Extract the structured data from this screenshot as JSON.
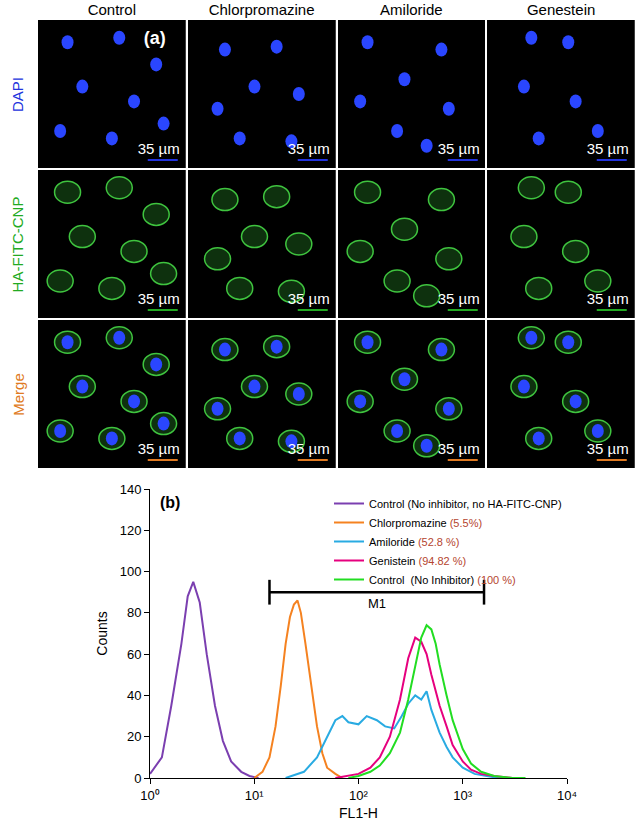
{
  "panel_a": {
    "label": "(a)",
    "columns": [
      "Control",
      "Chlorpromazine",
      "Amiloride",
      "Genestein"
    ],
    "rows": [
      {
        "name": "DAPI",
        "color": "#2233dd"
      },
      {
        "name": "HA-FITC-CNP",
        "color": "#22aa22"
      },
      {
        "name": "Merge",
        "color": "#e07a22"
      }
    ],
    "scale_bar": "35 µm"
  },
  "chart_data": {
    "type": "line",
    "panel_label": "(b)",
    "x_label": "FL1-H",
    "y_label": "Counts",
    "log": "x",
    "grid": false,
    "legend": "top right",
    "xlim": [
      1,
      10000
    ],
    "xticks": [
      {
        "value": 1,
        "label": "10⁰"
      },
      {
        "value": 10,
        "label": "10¹"
      },
      {
        "value": 100,
        "label": "10²"
      },
      {
        "value": 1000,
        "label": "10³"
      },
      {
        "value": 10000,
        "label": "10⁴"
      }
    ],
    "ylim": [
      0,
      140
    ],
    "yticks": [
      0,
      20,
      40,
      60,
      80,
      100,
      120,
      140
    ],
    "gate": {
      "label": "M1",
      "x0": 14,
      "x1": 1600,
      "y": 90
    },
    "series": [
      {
        "name": "Control (No inhibitor, no HA-FITC-CNP)",
        "color": "#7b3fb0",
        "x": [
          1,
          1.3,
          1.6,
          2,
          2.3,
          2.6,
          3,
          3.5,
          4.2,
          5,
          6,
          7.5,
          9,
          11
        ],
        "values": [
          2,
          10,
          35,
          65,
          88,
          95,
          85,
          60,
          35,
          18,
          8,
          3,
          1,
          0
        ]
      },
      {
        "name": "Chlorpromazine",
        "label": "(5.5%)",
        "color": "#f58220",
        "x": [
          10,
          12,
          14,
          16,
          18,
          20,
          22,
          24,
          26,
          28,
          31,
          35,
          40,
          45,
          50,
          60,
          70
        ],
        "values": [
          0,
          3,
          10,
          25,
          45,
          65,
          78,
          84,
          86,
          80,
          65,
          45,
          25,
          12,
          5,
          2,
          0
        ]
      },
      {
        "name": "Amiloride",
        "label": "(52.8 %)",
        "color": "#29abe2",
        "x": [
          20,
          30,
          40,
          50,
          60,
          70,
          80,
          100,
          120,
          150,
          180,
          220,
          260,
          300,
          350,
          400,
          450,
          500,
          600,
          700,
          800,
          1000,
          1300,
          1700,
          2200,
          3000
        ],
        "values": [
          0,
          3,
          10,
          20,
          28,
          30,
          27,
          26,
          30,
          28,
          25,
          24,
          30,
          36,
          40,
          38,
          42,
          33,
          22,
          15,
          10,
          5,
          2,
          1,
          0,
          0
        ]
      },
      {
        "name": "Genistein",
        "label": "(94.82 %)",
        "color": "#e6007e",
        "x": [
          60,
          80,
          100,
          130,
          160,
          200,
          250,
          300,
          350,
          400,
          450,
          500,
          600,
          700,
          800,
          1000,
          1200,
          1500,
          2000,
          3000
        ],
        "values": [
          0,
          1,
          2,
          5,
          10,
          20,
          38,
          58,
          68,
          66,
          60,
          50,
          35,
          25,
          16,
          8,
          4,
          2,
          1,
          0
        ]
      },
      {
        "name": "Control  (No Inhibitor)",
        "label": "(100 %)",
        "color": "#22dd22",
        "x": [
          80,
          100,
          130,
          160,
          200,
          250,
          300,
          350,
          400,
          450,
          500,
          550,
          600,
          700,
          800,
          1000,
          1200,
          1500,
          2000,
          3000,
          4000
        ],
        "values": [
          0,
          1,
          3,
          6,
          12,
          22,
          38,
          55,
          68,
          74,
          72,
          65,
          55,
          40,
          28,
          14,
          7,
          3,
          1,
          0,
          0
        ]
      }
    ]
  }
}
